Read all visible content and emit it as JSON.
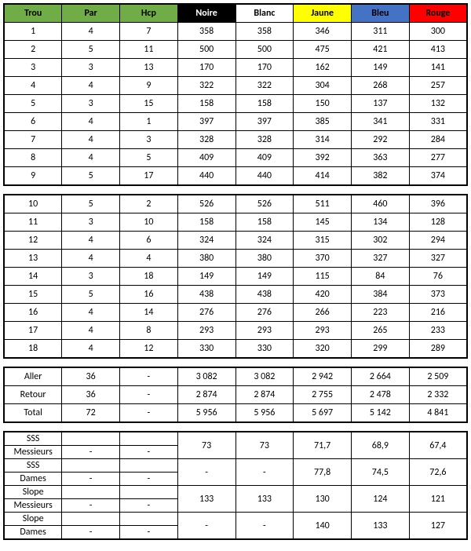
{
  "headers": {
    "trou": "Trou",
    "par": "Par",
    "hcp": "Hcp",
    "noire": "Noire",
    "blanc": "Blanc",
    "jaune": "Jaune",
    "bleu": "Bleu",
    "rouge": "Rouge"
  },
  "colors": {
    "green": "#70ad47",
    "black": "#000000",
    "white": "#ffffff",
    "yellow": "#ffff00",
    "blue": "#4472c4",
    "red": "#ff0000"
  },
  "front9": [
    {
      "trou": "1",
      "par": "4",
      "hcp": "7",
      "noire": "358",
      "blanc": "358",
      "jaune": "346",
      "bleu": "311",
      "rouge": "300"
    },
    {
      "trou": "2",
      "par": "5",
      "hcp": "11",
      "noire": "500",
      "blanc": "500",
      "jaune": "475",
      "bleu": "421",
      "rouge": "413"
    },
    {
      "trou": "3",
      "par": "3",
      "hcp": "13",
      "noire": "170",
      "blanc": "170",
      "jaune": "162",
      "bleu": "149",
      "rouge": "141"
    },
    {
      "trou": "4",
      "par": "4",
      "hcp": "9",
      "noire": "322",
      "blanc": "322",
      "jaune": "304",
      "bleu": "268",
      "rouge": "257"
    },
    {
      "trou": "5",
      "par": "3",
      "hcp": "15",
      "noire": "158",
      "blanc": "158",
      "jaune": "150",
      "bleu": "137",
      "rouge": "132"
    },
    {
      "trou": "6",
      "par": "4",
      "hcp": "1",
      "noire": "397",
      "blanc": "397",
      "jaune": "385",
      "bleu": "341",
      "rouge": "331"
    },
    {
      "trou": "7",
      "par": "4",
      "hcp": "3",
      "noire": "328",
      "blanc": "328",
      "jaune": "314",
      "bleu": "292",
      "rouge": "284"
    },
    {
      "trou": "8",
      "par": "4",
      "hcp": "5",
      "noire": "409",
      "blanc": "409",
      "jaune": "392",
      "bleu": "363",
      "rouge": "277"
    },
    {
      "trou": "9",
      "par": "5",
      "hcp": "17",
      "noire": "440",
      "blanc": "440",
      "jaune": "414",
      "bleu": "382",
      "rouge": "374"
    }
  ],
  "back9": [
    {
      "trou": "10",
      "par": "5",
      "hcp": "2",
      "noire": "526",
      "blanc": "526",
      "jaune": "511",
      "bleu": "460",
      "rouge": "396"
    },
    {
      "trou": "11",
      "par": "3",
      "hcp": "10",
      "noire": "158",
      "blanc": "158",
      "jaune": "145",
      "bleu": "134",
      "rouge": "128"
    },
    {
      "trou": "12",
      "par": "4",
      "hcp": "6",
      "noire": "324",
      "blanc": "324",
      "jaune": "315",
      "bleu": "302",
      "rouge": "294"
    },
    {
      "trou": "13",
      "par": "4",
      "hcp": "4",
      "noire": "380",
      "blanc": "380",
      "jaune": "370",
      "bleu": "327",
      "rouge": "327"
    },
    {
      "trou": "14",
      "par": "3",
      "hcp": "18",
      "noire": "149",
      "blanc": "149",
      "jaune": "115",
      "bleu": "84",
      "rouge": "76"
    },
    {
      "trou": "15",
      "par": "5",
      "hcp": "16",
      "noire": "438",
      "blanc": "438",
      "jaune": "420",
      "bleu": "384",
      "rouge": "373"
    },
    {
      "trou": "16",
      "par": "4",
      "hcp": "14",
      "noire": "276",
      "blanc": "276",
      "jaune": "266",
      "bleu": "223",
      "rouge": "216"
    },
    {
      "trou": "17",
      "par": "4",
      "hcp": "8",
      "noire": "293",
      "blanc": "293",
      "jaune": "293",
      "bleu": "265",
      "rouge": "233"
    },
    {
      "trou": "18",
      "par": "4",
      "hcp": "12",
      "noire": "330",
      "blanc": "330",
      "jaune": "320",
      "bleu": "299",
      "rouge": "289"
    }
  ],
  "totals": [
    {
      "label": "Aller",
      "par": "36",
      "hcp": "-",
      "noire": "3 082",
      "blanc": "3 082",
      "jaune": "2 942",
      "bleu": "2 664",
      "rouge": "2 509"
    },
    {
      "label": "Retour",
      "par": "36",
      "hcp": "-",
      "noire": "2 874",
      "blanc": "2 874",
      "jaune": "2 755",
      "bleu": "2 478",
      "rouge": "2 332"
    },
    {
      "label": "Total",
      "par": "72",
      "hcp": "-",
      "noire": "5 956",
      "blanc": "5 956",
      "jaune": "5 697",
      "bleu": "5 142",
      "rouge": "4 841"
    }
  ],
  "ratings": [
    {
      "l1": "SSS",
      "l2": "Messieurs",
      "par": "-",
      "hcp": "-",
      "noire": "73",
      "blanc": "73",
      "jaune": "71,7",
      "bleu": "68,9",
      "rouge": "67,4"
    },
    {
      "l1": "SSS",
      "l2": "Dames",
      "par": "-",
      "hcp": "-",
      "noire": "-",
      "blanc": "-",
      "jaune": "77,8",
      "bleu": "74,5",
      "rouge": "72,6"
    },
    {
      "l1": "Slope",
      "l2": "Messieurs",
      "par": "-",
      "hcp": "-",
      "noire": "133",
      "blanc": "133",
      "jaune": "130",
      "bleu": "124",
      "rouge": "121"
    },
    {
      "l1": "Slope",
      "l2": "Dames",
      "par": "-",
      "hcp": "-",
      "noire": "-",
      "blanc": "-",
      "jaune": "140",
      "bleu": "133",
      "rouge": "127"
    }
  ]
}
